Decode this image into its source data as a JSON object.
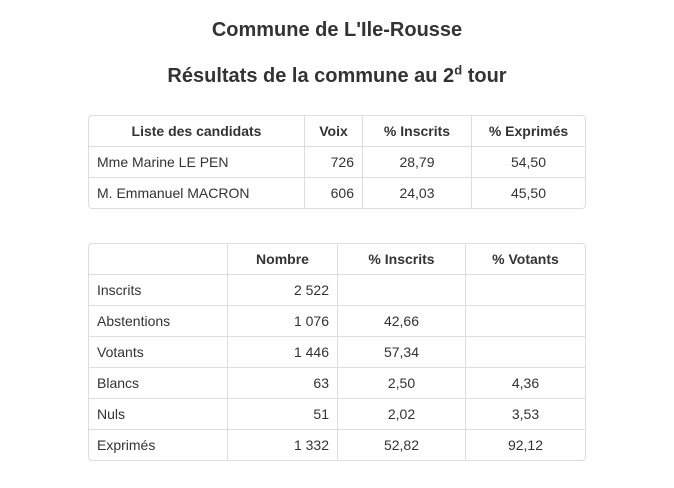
{
  "page": {
    "title": "Commune de L'Ile-Rousse",
    "subtitle": {
      "prefix": "Résultats de la commune au 2",
      "sup": "d",
      "suffix": " tour"
    }
  },
  "colors": {
    "text": "#333333",
    "border": "#dddddd",
    "background": "#ffffff"
  },
  "candidates_table": {
    "headers": [
      "Liste des candidats",
      "Voix",
      "% Inscrits",
      "% Exprimés"
    ],
    "rows": [
      [
        "Mme Marine LE PEN",
        "726",
        "28,79",
        "54,50"
      ],
      [
        "M. Emmanuel MACRON",
        "606",
        "24,03",
        "45,50"
      ]
    ]
  },
  "participation_table": {
    "headers": [
      "",
      "Nombre",
      "% Inscrits",
      "% Votants"
    ],
    "rows": [
      [
        "Inscrits",
        "2 522",
        "",
        ""
      ],
      [
        "Abstentions",
        "1 076",
        "42,66",
        ""
      ],
      [
        "Votants",
        "1 446",
        "57,34",
        ""
      ],
      [
        "Blancs",
        "63",
        "2,50",
        "4,36"
      ],
      [
        "Nuls",
        "51",
        "2,02",
        "3,53"
      ],
      [
        "Exprimés",
        "1 332",
        "52,82",
        "92,12"
      ]
    ]
  }
}
